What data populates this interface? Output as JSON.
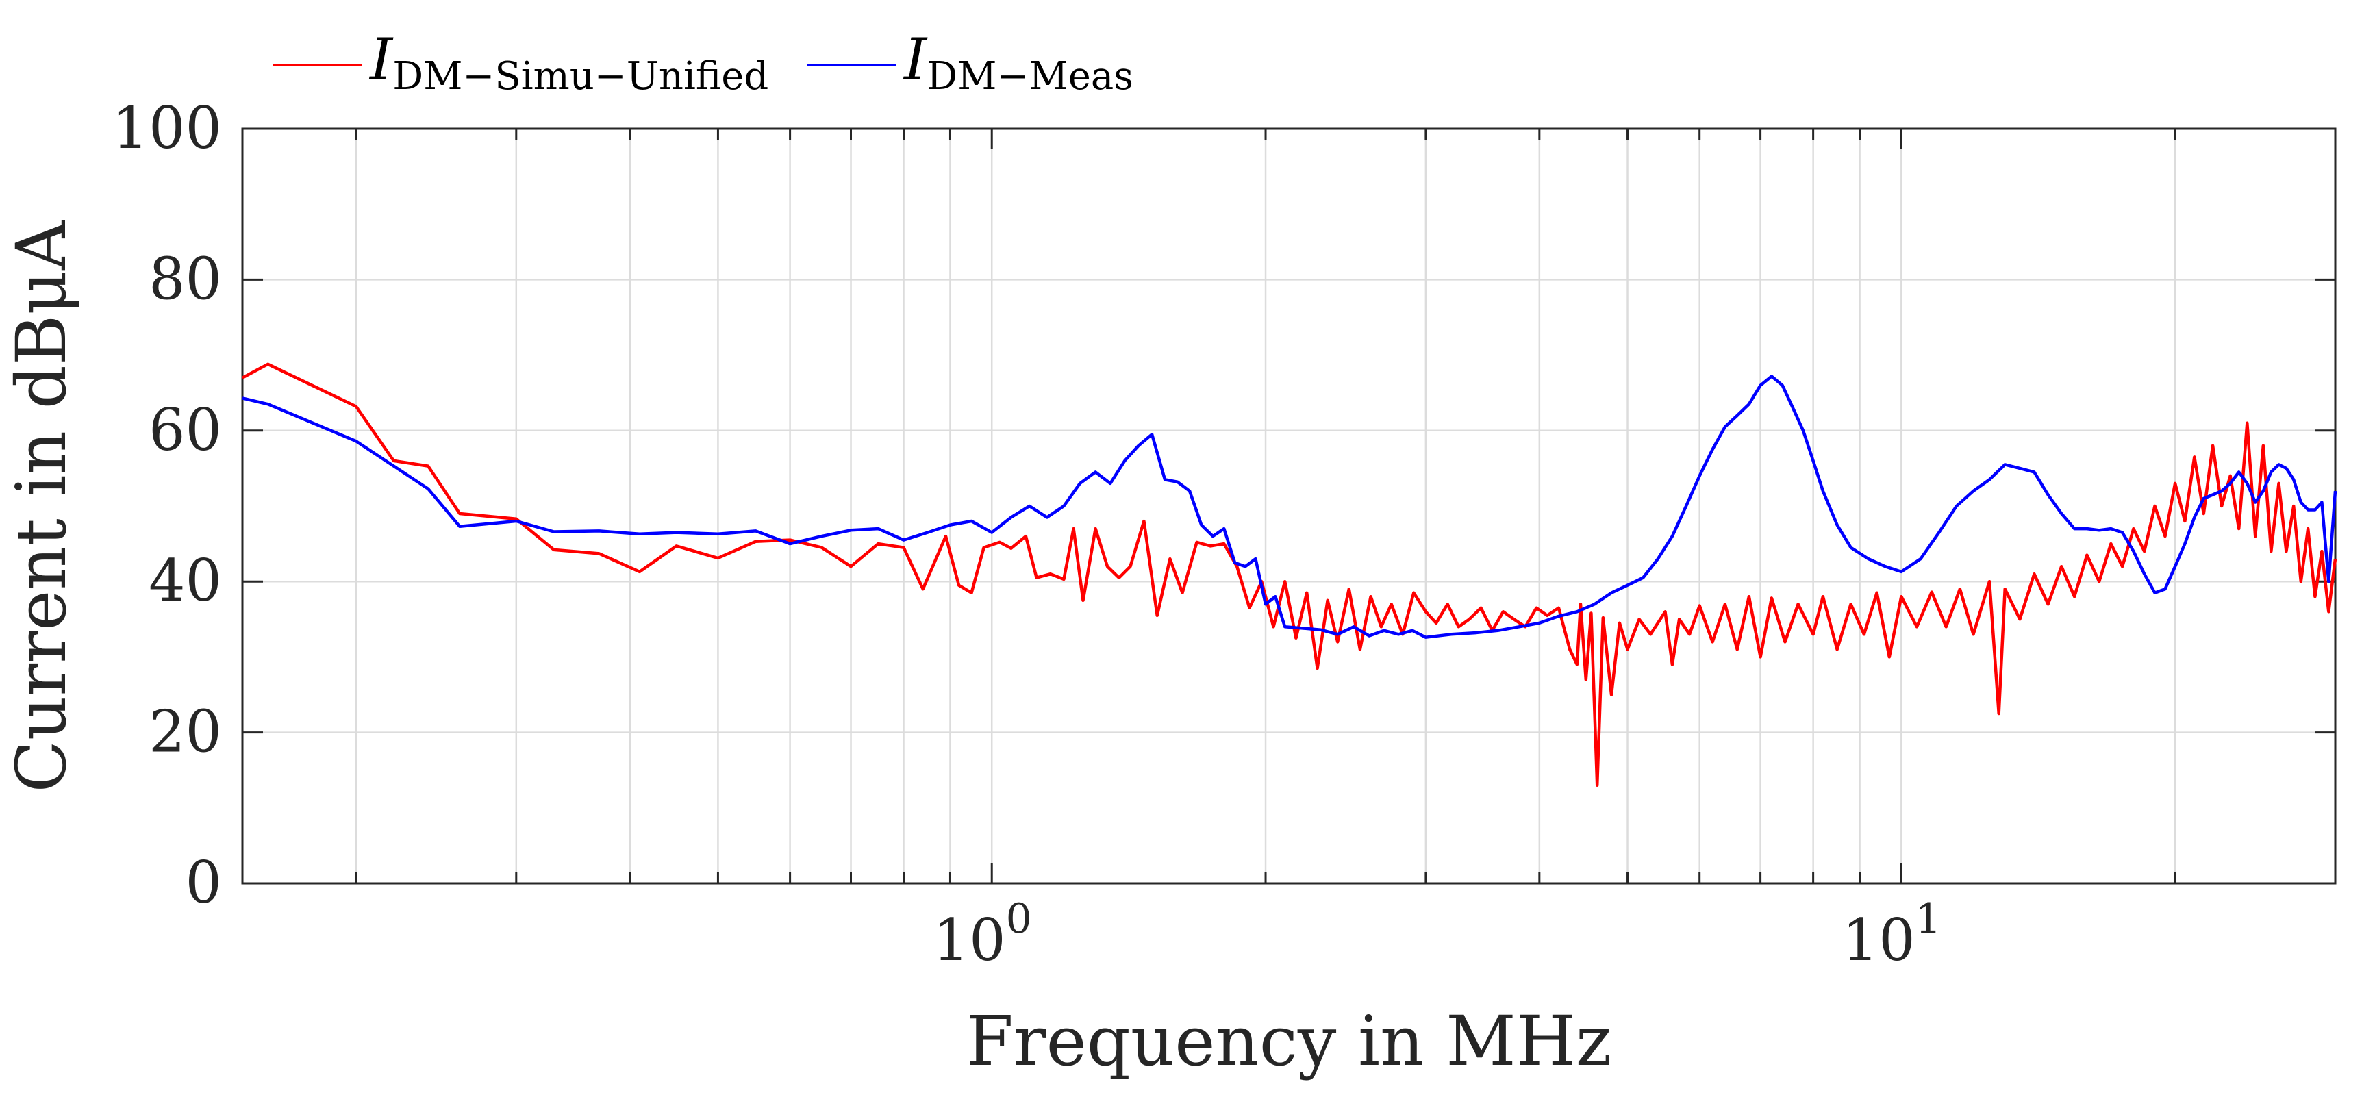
{
  "chart_data": {
    "type": "line",
    "xlabel": "Frequency in MHz",
    "ylabel": "Current in dBμA",
    "xscale": "log",
    "xlim": [
      0.15,
      30
    ],
    "ylim": [
      0,
      100
    ],
    "grid": true,
    "legend_position": "top-left, outside above plot",
    "x_ticks": [
      {
        "value": 1,
        "base": "10",
        "exp": "0"
      },
      {
        "value": 10,
        "base": "10",
        "exp": "1"
      }
    ],
    "y_ticks": [
      {
        "value": 0,
        "label": "0"
      },
      {
        "value": 20,
        "label": "20"
      },
      {
        "value": 40,
        "label": "40"
      },
      {
        "value": 60,
        "label": "60"
      },
      {
        "value": 80,
        "label": "80"
      },
      {
        "value": 100,
        "label": "100"
      }
    ],
    "series": [
      {
        "name_main": "I",
        "name_sub": "DM−Simu−Unified",
        "color": "#ff0000",
        "points": [
          [
            0.15,
            67
          ],
          [
            0.16,
            68.8
          ],
          [
            0.2,
            63.2
          ],
          [
            0.22,
            56
          ],
          [
            0.24,
            55.3
          ],
          [
            0.26,
            49
          ],
          [
            0.3,
            48.3
          ],
          [
            0.33,
            44.2
          ],
          [
            0.37,
            43.7
          ],
          [
            0.41,
            41.3
          ],
          [
            0.45,
            44.7
          ],
          [
            0.5,
            43.1
          ],
          [
            0.55,
            45.3
          ],
          [
            0.6,
            45.5
          ],
          [
            0.65,
            44.5
          ],
          [
            0.7,
            42
          ],
          [
            0.75,
            45
          ],
          [
            0.8,
            44.5
          ],
          [
            0.84,
            39
          ],
          [
            0.89,
            46
          ],
          [
            0.92,
            39.5
          ],
          [
            0.95,
            38.5
          ],
          [
            0.98,
            44.5
          ],
          [
            1.02,
            45.2
          ],
          [
            1.05,
            44.4
          ],
          [
            1.09,
            46
          ],
          [
            1.12,
            40.5
          ],
          [
            1.16,
            41
          ],
          [
            1.2,
            40.3
          ],
          [
            1.23,
            47
          ],
          [
            1.26,
            37.5
          ],
          [
            1.3,
            47
          ],
          [
            1.34,
            42
          ],
          [
            1.38,
            40.5
          ],
          [
            1.42,
            42
          ],
          [
            1.47,
            48
          ],
          [
            1.52,
            35.5
          ],
          [
            1.57,
            43
          ],
          [
            1.62,
            38.5
          ],
          [
            1.68,
            45.2
          ],
          [
            1.74,
            44.7
          ],
          [
            1.8,
            45
          ],
          [
            1.86,
            42
          ],
          [
            1.92,
            36.5
          ],
          [
            1.98,
            40
          ],
          [
            2.04,
            34
          ],
          [
            2.1,
            40
          ],
          [
            2.16,
            32.5
          ],
          [
            2.22,
            38.5
          ],
          [
            2.28,
            28.5
          ],
          [
            2.34,
            37.5
          ],
          [
            2.4,
            32
          ],
          [
            2.47,
            39
          ],
          [
            2.54,
            31
          ],
          [
            2.61,
            38
          ],
          [
            2.68,
            34
          ],
          [
            2.75,
            37
          ],
          [
            2.83,
            33
          ],
          [
            2.91,
            38.5
          ],
          [
            3.0,
            36
          ],
          [
            3.08,
            34.5
          ],
          [
            3.17,
            37
          ],
          [
            3.26,
            34
          ],
          [
            3.35,
            35
          ],
          [
            3.45,
            36.5
          ],
          [
            3.55,
            33.5
          ],
          [
            3.65,
            36
          ],
          [
            3.75,
            35
          ],
          [
            3.86,
            34
          ],
          [
            3.97,
            36.5
          ],
          [
            4.08,
            35.5
          ],
          [
            4.2,
            36.5
          ],
          [
            4.32,
            31
          ],
          [
            4.4,
            29
          ],
          [
            4.44,
            37
          ],
          [
            4.5,
            27
          ],
          [
            4.56,
            35.8
          ],
          [
            4.63,
            13
          ],
          [
            4.7,
            35.2
          ],
          [
            4.8,
            25
          ],
          [
            4.9,
            34.5
          ],
          [
            5.0,
            31
          ],
          [
            5.15,
            35
          ],
          [
            5.3,
            33
          ],
          [
            5.5,
            36
          ],
          [
            5.6,
            29
          ],
          [
            5.7,
            35
          ],
          [
            5.85,
            33
          ],
          [
            6.0,
            36.8
          ],
          [
            6.2,
            32
          ],
          [
            6.4,
            37
          ],
          [
            6.6,
            31
          ],
          [
            6.8,
            38
          ],
          [
            7.0,
            30
          ],
          [
            7.2,
            37.8
          ],
          [
            7.45,
            32
          ],
          [
            7.7,
            37
          ],
          [
            8.0,
            33
          ],
          [
            8.2,
            38
          ],
          [
            8.5,
            31
          ],
          [
            8.8,
            37
          ],
          [
            9.1,
            33
          ],
          [
            9.4,
            38.5
          ],
          [
            9.7,
            30
          ],
          [
            10.0,
            38
          ],
          [
            10.4,
            34
          ],
          [
            10.8,
            38.6
          ],
          [
            11.2,
            34
          ],
          [
            11.6,
            39
          ],
          [
            12.0,
            33
          ],
          [
            12.5,
            40
          ],
          [
            12.8,
            22.5
          ],
          [
            13.0,
            39
          ],
          [
            13.5,
            35
          ],
          [
            14.0,
            41
          ],
          [
            14.5,
            37
          ],
          [
            15.0,
            42
          ],
          [
            15.5,
            38
          ],
          [
            16.0,
            43.5
          ],
          [
            16.5,
            40
          ],
          [
            17.0,
            45
          ],
          [
            17.5,
            42
          ],
          [
            18.0,
            47
          ],
          [
            18.5,
            44
          ],
          [
            19.0,
            50
          ],
          [
            19.5,
            46
          ],
          [
            20.0,
            53
          ],
          [
            20.5,
            48
          ],
          [
            21.0,
            56.5
          ],
          [
            21.5,
            49
          ],
          [
            22.0,
            58
          ],
          [
            22.5,
            50
          ],
          [
            23.0,
            54
          ],
          [
            23.5,
            47
          ],
          [
            24.0,
            61
          ],
          [
            24.5,
            46
          ],
          [
            25.0,
            58
          ],
          [
            25.5,
            44
          ],
          [
            26.0,
            53
          ],
          [
            26.5,
            44
          ],
          [
            27.0,
            50
          ],
          [
            27.5,
            40
          ],
          [
            28.0,
            47
          ],
          [
            28.5,
            38
          ],
          [
            29.0,
            44
          ],
          [
            29.5,
            36
          ],
          [
            30.0,
            43
          ]
        ]
      },
      {
        "name_main": "I",
        "name_sub": "DM−Meas",
        "color": "#0000ff",
        "points": [
          [
            0.15,
            64.3
          ],
          [
            0.16,
            63.5
          ],
          [
            0.2,
            58.6
          ],
          [
            0.24,
            52.3
          ],
          [
            0.26,
            47.3
          ],
          [
            0.3,
            48
          ],
          [
            0.33,
            46.6
          ],
          [
            0.37,
            46.7
          ],
          [
            0.41,
            46.3
          ],
          [
            0.45,
            46.5
          ],
          [
            0.5,
            46.3
          ],
          [
            0.55,
            46.7
          ],
          [
            0.6,
            45
          ],
          [
            0.65,
            46
          ],
          [
            0.7,
            46.8
          ],
          [
            0.75,
            47
          ],
          [
            0.8,
            45.5
          ],
          [
            0.85,
            46.5
          ],
          [
            0.9,
            47.5
          ],
          [
            0.95,
            48
          ],
          [
            1.0,
            46.5
          ],
          [
            1.05,
            48.5
          ],
          [
            1.1,
            50
          ],
          [
            1.15,
            48.5
          ],
          [
            1.2,
            50
          ],
          [
            1.25,
            53
          ],
          [
            1.3,
            54.5
          ],
          [
            1.35,
            53
          ],
          [
            1.4,
            56
          ],
          [
            1.45,
            58
          ],
          [
            1.5,
            59.5
          ],
          [
            1.55,
            53.5
          ],
          [
            1.6,
            53.2
          ],
          [
            1.65,
            52
          ],
          [
            1.7,
            47.5
          ],
          [
            1.75,
            46
          ],
          [
            1.8,
            47
          ],
          [
            1.85,
            42.5
          ],
          [
            1.9,
            42
          ],
          [
            1.95,
            43
          ],
          [
            2.0,
            37
          ],
          [
            2.05,
            38
          ],
          [
            2.1,
            34
          ],
          [
            2.2,
            33.8
          ],
          [
            2.3,
            33.6
          ],
          [
            2.4,
            33
          ],
          [
            2.5,
            34
          ],
          [
            2.6,
            32.8
          ],
          [
            2.7,
            33.5
          ],
          [
            2.8,
            33
          ],
          [
            2.9,
            33.5
          ],
          [
            3.0,
            32.6
          ],
          [
            3.2,
            33
          ],
          [
            3.4,
            33.2
          ],
          [
            3.6,
            33.5
          ],
          [
            3.8,
            34
          ],
          [
            4.0,
            34.5
          ],
          [
            4.2,
            35.4
          ],
          [
            4.4,
            36
          ],
          [
            4.6,
            37
          ],
          [
            4.8,
            38.5
          ],
          [
            5.0,
            39.5
          ],
          [
            5.2,
            40.5
          ],
          [
            5.4,
            43
          ],
          [
            5.6,
            46
          ],
          [
            5.8,
            50
          ],
          [
            6.0,
            54
          ],
          [
            6.2,
            57.5
          ],
          [
            6.4,
            60.5
          ],
          [
            6.6,
            62
          ],
          [
            6.8,
            63.5
          ],
          [
            7.0,
            66
          ],
          [
            7.2,
            67.2
          ],
          [
            7.4,
            66
          ],
          [
            7.6,
            63
          ],
          [
            7.8,
            60
          ],
          [
            8.0,
            56
          ],
          [
            8.2,
            52
          ],
          [
            8.5,
            47.5
          ],
          [
            8.8,
            44.5
          ],
          [
            9.2,
            43
          ],
          [
            9.6,
            42
          ],
          [
            10.0,
            41.3
          ],
          [
            10.5,
            43
          ],
          [
            11.0,
            46.5
          ],
          [
            11.5,
            50
          ],
          [
            12.0,
            52
          ],
          [
            12.5,
            53.5
          ],
          [
            13.0,
            55.5
          ],
          [
            13.5,
            55
          ],
          [
            14.0,
            54.5
          ],
          [
            14.5,
            51.5
          ],
          [
            15.0,
            49
          ],
          [
            15.5,
            47
          ],
          [
            16.0,
            47
          ],
          [
            16.5,
            46.8
          ],
          [
            17.0,
            47
          ],
          [
            17.5,
            46.5
          ],
          [
            18.0,
            44
          ],
          [
            18.5,
            41
          ],
          [
            19.0,
            38.5
          ],
          [
            19.5,
            39
          ],
          [
            20.0,
            42
          ],
          [
            20.5,
            45
          ],
          [
            21.0,
            48.5
          ],
          [
            21.5,
            51
          ],
          [
            22.0,
            51.5
          ],
          [
            22.5,
            52
          ],
          [
            23.0,
            53
          ],
          [
            23.5,
            54.5
          ],
          [
            24.0,
            53
          ],
          [
            24.5,
            50.5
          ],
          [
            25.0,
            52
          ],
          [
            25.5,
            54.5
          ],
          [
            26.0,
            55.5
          ],
          [
            26.5,
            55
          ],
          [
            27.0,
            53.5
          ],
          [
            27.5,
            50.5
          ],
          [
            28.0,
            49.5
          ],
          [
            28.5,
            49.5
          ],
          [
            29.0,
            50.5
          ],
          [
            29.5,
            40
          ],
          [
            30.0,
            52
          ]
        ]
      }
    ]
  }
}
